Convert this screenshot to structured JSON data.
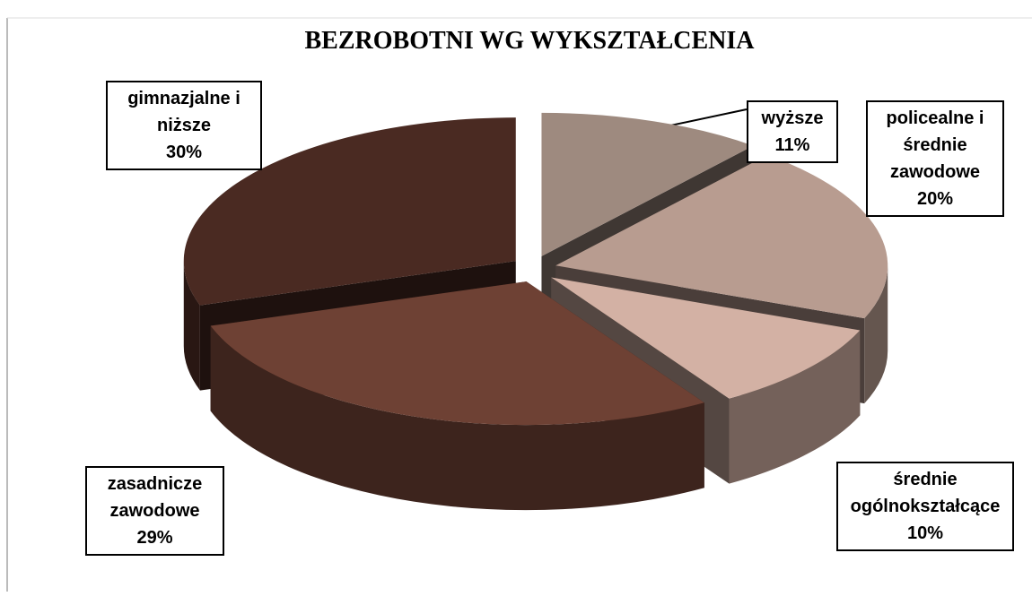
{
  "chart_data": {
    "type": "pie3d",
    "title": "BEZROBOTNI WG WYKSZTAŁCENIA",
    "categories": [
      "wyższe",
      "policealne i średnie zawodowe",
      "średnie ogólnokształcące",
      "zasadnicze zawodowe",
      "gimnazjalne i niższe"
    ],
    "values": [
      11,
      20,
      10,
      29,
      30
    ],
    "value_labels": [
      "11%",
      "20%",
      "10%",
      "29%",
      "30%"
    ],
    "colors": [
      "#9e8a7f",
      "#b89c90",
      "#d3b1a4",
      "#6e4134",
      "#4a2a22"
    ]
  }
}
